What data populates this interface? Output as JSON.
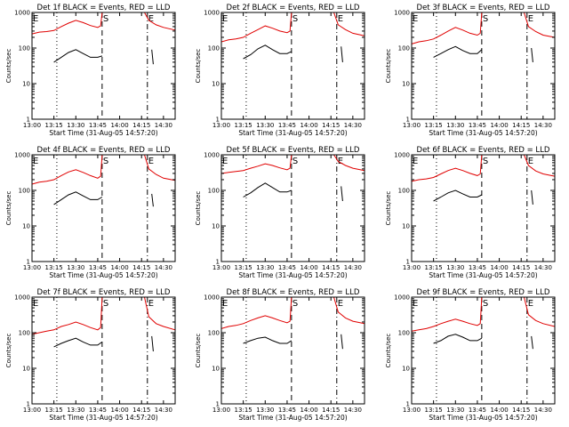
{
  "figure": {
    "xlabel": "Start Time (31-Aug-05 14:57:20)",
    "ylabel": "Counts/sec",
    "x_ticks": [
      "13:00",
      "13:15",
      "13:30",
      "13:45",
      "14:00",
      "14:15",
      "14:30"
    ],
    "y_ticks": [
      "1",
      "10",
      "100",
      "1000"
    ],
    "x_tick_minutes": [
      0,
      15,
      30,
      45,
      60,
      75,
      90
    ],
    "y_tick_values": [
      1,
      10,
      100,
      1000
    ],
    "colors": {
      "events": "#000000",
      "lld": "#e00000",
      "axes": "#000000"
    },
    "markers": [
      {
        "label": "E",
        "minute": 0,
        "style": "none"
      },
      {
        "label": "S",
        "minute": 48,
        "style": "dashed"
      },
      {
        "label": "E",
        "minute": 79,
        "style": "dashdot"
      }
    ],
    "marker_lines": [
      {
        "minute": 17,
        "style": "dotted"
      },
      {
        "minute": 48,
        "style": "dashed"
      },
      {
        "minute": 79,
        "style": "dashdot"
      }
    ]
  },
  "chart_data": [
    {
      "type": "line",
      "title": "Det 1f  BLACK = Events, RED = LLD",
      "xlabel": "Start Time (31-Aug-05 14:57:20)",
      "ylabel": "Counts/sec",
      "xlim": [
        "13:00",
        "14:38"
      ],
      "ylim": [
        1,
        1000
      ],
      "yscale": "log",
      "series": [
        {
          "name": "Events",
          "color": "#000000",
          "x": [
            "13:15",
            "13:20",
            "13:25",
            "13:30",
            "13:35",
            "13:40",
            "13:45",
            "13:48",
            "14:21",
            "14:22",
            "14:23"
          ],
          "values": [
            40,
            55,
            75,
            90,
            70,
            55,
            55,
            60,
            null,
            90,
            35
          ]
        },
        {
          "name": "LLD",
          "color": "#e00000",
          "x": [
            "13:00",
            "13:05",
            "13:10",
            "13:15",
            "13:20",
            "13:25",
            "13:30",
            "13:35",
            "13:40",
            "13:45",
            "13:47",
            "13:48",
            "14:17",
            "14:20",
            "14:25",
            "14:30",
            "14:38"
          ],
          "values": [
            250,
            280,
            290,
            310,
            400,
            500,
            600,
            520,
            430,
            380,
            420,
            1000,
            1000,
            600,
            450,
            380,
            320
          ]
        }
      ]
    },
    {
      "type": "line",
      "title": "Det 2f  BLACK = Events, RED = LLD",
      "xlabel": "Start Time (31-Aug-05 14:57:20)",
      "ylabel": "Counts/sec",
      "xlim": [
        "13:00",
        "14:38"
      ],
      "ylim": [
        1,
        1000
      ],
      "yscale": "log",
      "series": [
        {
          "name": "Events",
          "color": "#000000",
          "x": [
            "13:15",
            "13:20",
            "13:25",
            "13:30",
            "13:35",
            "13:40",
            "13:45",
            "13:48",
            "14:21",
            "14:22",
            "14:23"
          ],
          "values": [
            50,
            65,
            95,
            120,
            90,
            70,
            70,
            80,
            null,
            110,
            40
          ]
        },
        {
          "name": "LLD",
          "color": "#e00000",
          "x": [
            "13:00",
            "13:05",
            "13:10",
            "13:15",
            "13:20",
            "13:25",
            "13:30",
            "13:35",
            "13:40",
            "13:45",
            "13:47",
            "13:48",
            "14:17",
            "14:20",
            "14:25",
            "14:30",
            "14:38"
          ],
          "values": [
            150,
            170,
            180,
            200,
            260,
            330,
            420,
            360,
            300,
            270,
            300,
            1000,
            1000,
            450,
            330,
            260,
            220
          ]
        }
      ]
    },
    {
      "type": "line",
      "title": "Det 3f  BLACK = Events, RED = LLD",
      "xlabel": "Start Time (31-Aug-05 14:57:20)",
      "ylabel": "Counts/sec",
      "xlim": [
        "13:00",
        "14:38"
      ],
      "ylim": [
        1,
        1000
      ],
      "yscale": "log",
      "series": [
        {
          "name": "Events",
          "color": "#000000",
          "x": [
            "13:15",
            "13:20",
            "13:25",
            "13:30",
            "13:35",
            "13:40",
            "13:45",
            "13:48",
            "14:21",
            "14:22",
            "14:23"
          ],
          "values": [
            55,
            70,
            90,
            110,
            85,
            70,
            70,
            90,
            null,
            100,
            40
          ]
        },
        {
          "name": "LLD",
          "color": "#e00000",
          "x": [
            "13:00",
            "13:05",
            "13:10",
            "13:15",
            "13:20",
            "13:25",
            "13:30",
            "13:35",
            "13:40",
            "13:45",
            "13:47",
            "13:48",
            "14:17",
            "14:20",
            "14:25",
            "14:30",
            "14:38"
          ],
          "values": [
            130,
            150,
            160,
            180,
            230,
            300,
            380,
            320,
            260,
            230,
            260,
            1000,
            1000,
            400,
            290,
            230,
            200
          ]
        }
      ]
    },
    {
      "type": "line",
      "title": "Det 4f  BLACK = Events, RED = LLD",
      "xlabel": "Start Time (31-Aug-05 14:57:20)",
      "ylabel": "Counts/sec",
      "xlim": [
        "13:00",
        "14:38"
      ],
      "ylim": [
        1,
        1000
      ],
      "yscale": "log",
      "series": [
        {
          "name": "Events",
          "color": "#000000",
          "x": [
            "13:15",
            "13:20",
            "13:25",
            "13:30",
            "13:35",
            "13:40",
            "13:45",
            "13:48",
            "14:21",
            "14:22",
            "14:23"
          ],
          "values": [
            40,
            55,
            75,
            90,
            70,
            55,
            55,
            65,
            null,
            80,
            35
          ]
        },
        {
          "name": "LLD",
          "color": "#e00000",
          "x": [
            "13:00",
            "13:05",
            "13:10",
            "13:15",
            "13:20",
            "13:25",
            "13:30",
            "13:35",
            "13:40",
            "13:45",
            "13:47",
            "13:48",
            "14:17",
            "14:20",
            "14:25",
            "14:30",
            "14:38"
          ],
          "values": [
            150,
            170,
            180,
            200,
            260,
            330,
            380,
            320,
            260,
            220,
            250,
            1000,
            1000,
            400,
            280,
            220,
            190
          ]
        }
      ]
    },
    {
      "type": "line",
      "title": "Det 5f  BLACK = Events, RED = LLD",
      "xlabel": "Start Time (31-Aug-05 14:57:20)",
      "ylabel": "Counts/sec",
      "xlim": [
        "13:00",
        "14:38"
      ],
      "ylim": [
        1,
        1000
      ],
      "yscale": "log",
      "series": [
        {
          "name": "Events",
          "color": "#000000",
          "x": [
            "13:15",
            "13:20",
            "13:25",
            "13:30",
            "13:35",
            "13:40",
            "13:45",
            "13:48",
            "14:21",
            "14:22",
            "14:23"
          ],
          "values": [
            65,
            85,
            120,
            160,
            120,
            90,
            90,
            100,
            null,
            130,
            50
          ]
        },
        {
          "name": "LLD",
          "color": "#e00000",
          "x": [
            "13:00",
            "13:05",
            "13:10",
            "13:15",
            "13:20",
            "13:25",
            "13:30",
            "13:35",
            "13:40",
            "13:45",
            "13:47",
            "13:48",
            "14:17",
            "14:20",
            "14:25",
            "14:30",
            "14:38"
          ],
          "values": [
            300,
            320,
            340,
            360,
            420,
            480,
            560,
            500,
            430,
            380,
            420,
            1000,
            1000,
            650,
            500,
            420,
            360
          ]
        }
      ]
    },
    {
      "type": "line",
      "title": "Det 6f  BLACK = Events, RED = LLD",
      "xlabel": "Start Time (31-Aug-05 14:57:20)",
      "ylabel": "Counts/sec",
      "xlim": [
        "13:00",
        "14:38"
      ],
      "ylim": [
        1,
        1000
      ],
      "yscale": "log",
      "series": [
        {
          "name": "Events",
          "color": "#000000",
          "x": [
            "13:15",
            "13:20",
            "13:25",
            "13:30",
            "13:35",
            "13:40",
            "13:45",
            "13:48",
            "14:21",
            "14:22",
            "14:23"
          ],
          "values": [
            50,
            65,
            85,
            100,
            80,
            65,
            65,
            75,
            null,
            100,
            40
          ]
        },
        {
          "name": "LLD",
          "color": "#e00000",
          "x": [
            "13:00",
            "13:05",
            "13:10",
            "13:15",
            "13:20",
            "13:25",
            "13:30",
            "13:35",
            "13:40",
            "13:45",
            "13:47",
            "13:48",
            "14:17",
            "14:20",
            "14:25",
            "14:30",
            "14:38"
          ],
          "values": [
            180,
            200,
            210,
            230,
            290,
            360,
            420,
            360,
            300,
            260,
            290,
            1000,
            1000,
            500,
            350,
            290,
            250
          ]
        }
      ]
    },
    {
      "type": "line",
      "title": "Det 7f  BLACK = Events, RED = LLD",
      "xlabel": "Start Time (31-Aug-05 14:57:20)",
      "ylabel": "Counts/sec",
      "xlim": [
        "13:00",
        "14:38"
      ],
      "ylim": [
        1,
        1000
      ],
      "yscale": "log",
      "series": [
        {
          "name": "Events",
          "color": "#000000",
          "x": [
            "13:15",
            "13:20",
            "13:25",
            "13:30",
            "13:35",
            "13:40",
            "13:45",
            "13:48",
            "14:21",
            "14:22",
            "14:23"
          ],
          "values": [
            40,
            50,
            60,
            70,
            55,
            45,
            45,
            55,
            null,
            80,
            30
          ]
        },
        {
          "name": "LLD",
          "color": "#e00000",
          "x": [
            "13:00",
            "13:05",
            "13:10",
            "13:15",
            "13:20",
            "13:25",
            "13:30",
            "13:35",
            "13:40",
            "13:45",
            "13:47",
            "13:48",
            "14:17",
            "14:20",
            "14:25",
            "14:30",
            "14:38"
          ],
          "values": [
            90,
            100,
            110,
            120,
            150,
            170,
            200,
            170,
            140,
            120,
            140,
            1000,
            1000,
            280,
            180,
            150,
            120
          ]
        }
      ]
    },
    {
      "type": "line",
      "title": "Det 8f  BLACK = Events, RED = LLD",
      "xlabel": "Start Time (31-Aug-05 14:57:20)",
      "ylabel": "Counts/sec",
      "xlim": [
        "13:00",
        "14:38"
      ],
      "ylim": [
        1,
        1000
      ],
      "yscale": "log",
      "series": [
        {
          "name": "Events",
          "color": "#000000",
          "x": [
            "13:15",
            "13:20",
            "13:25",
            "13:30",
            "13:35",
            "13:40",
            "13:45",
            "13:48",
            "14:21",
            "14:22",
            "14:23"
          ],
          "values": [
            50,
            60,
            70,
            75,
            60,
            50,
            50,
            60,
            null,
            90,
            35
          ]
        },
        {
          "name": "LLD",
          "color": "#e00000",
          "x": [
            "13:00",
            "13:05",
            "13:10",
            "13:15",
            "13:20",
            "13:25",
            "13:30",
            "13:35",
            "13:40",
            "13:45",
            "13:47",
            "13:48",
            "14:17",
            "14:20",
            "14:25",
            "14:30",
            "14:38"
          ],
          "values": [
            130,
            150,
            160,
            180,
            220,
            260,
            300,
            260,
            220,
            190,
            210,
            1000,
            1000,
            380,
            260,
            210,
            180
          ]
        }
      ]
    },
    {
      "type": "line",
      "title": "Det 9f  BLACK = Events, RED = LLD",
      "xlabel": "Start Time (31-Aug-05 14:57:20)",
      "ylabel": "Counts/sec",
      "xlim": [
        "13:00",
        "14:38"
      ],
      "ylim": [
        1,
        1000
      ],
      "yscale": "log",
      "series": [
        {
          "name": "Events",
          "color": "#000000",
          "x": [
            "13:15",
            "13:20",
            "13:25",
            "13:30",
            "13:35",
            "13:40",
            "13:45",
            "13:48",
            "14:21",
            "14:22",
            "14:23"
          ],
          "values": [
            50,
            60,
            80,
            90,
            75,
            60,
            60,
            70,
            null,
            80,
            35
          ]
        },
        {
          "name": "LLD",
          "color": "#e00000",
          "x": [
            "13:00",
            "13:05",
            "13:10",
            "13:15",
            "13:20",
            "13:25",
            "13:30",
            "13:35",
            "13:40",
            "13:45",
            "13:47",
            "13:48",
            "14:17",
            "14:20",
            "14:25",
            "14:30",
            "14:38"
          ],
          "values": [
            110,
            120,
            130,
            150,
            180,
            210,
            240,
            210,
            180,
            160,
            180,
            1000,
            1000,
            320,
            220,
            180,
            150
          ]
        }
      ]
    }
  ]
}
